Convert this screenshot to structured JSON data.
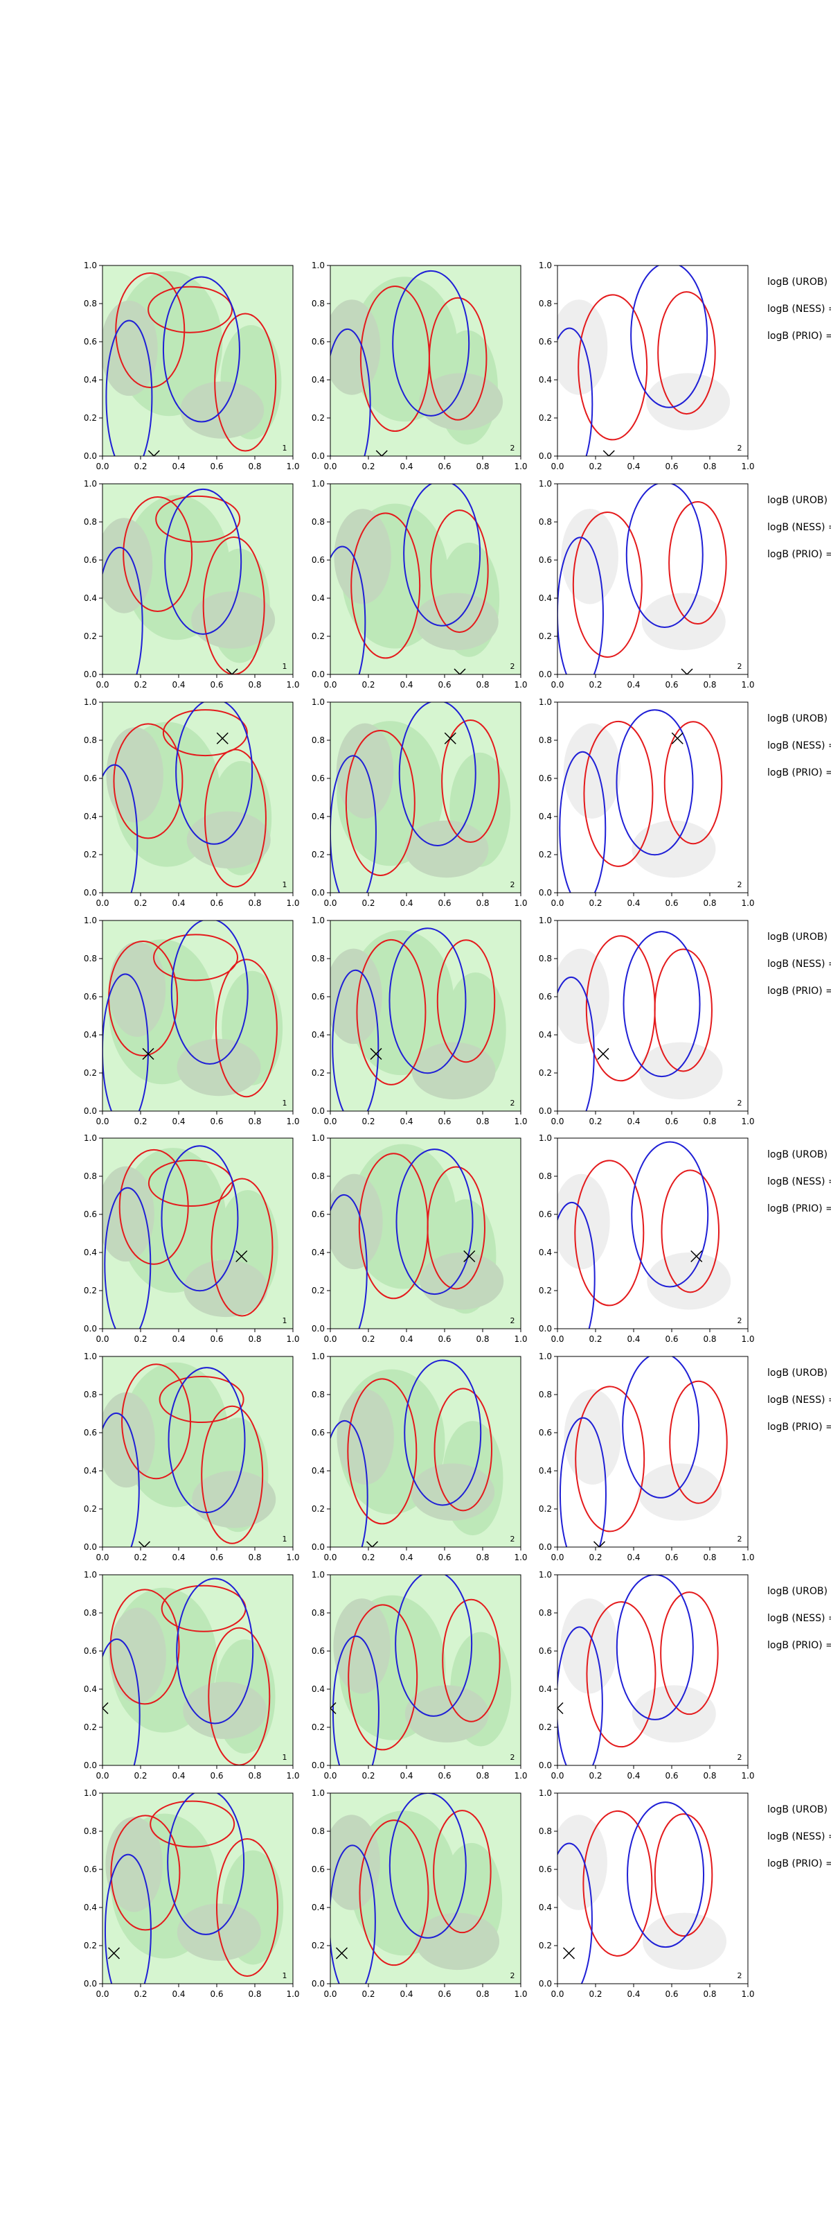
{
  "chart_data": {
    "type": "contour",
    "layout": "8 rows x 3 columns of square panels",
    "xlim": [
      0,
      1
    ],
    "ylim": [
      0,
      1
    ],
    "xticks": [
      "0.0",
      "0.2",
      "0.4",
      "0.6",
      "0.8",
      "1.0"
    ],
    "yticks": [
      "0.0",
      "0.2",
      "0.4",
      "0.6",
      "0.8",
      "1.0"
    ],
    "grid": false,
    "legend": "none",
    "colors": {
      "red_contour": "#e41a1c",
      "blue_contour": "#1f1fd6",
      "fill_light_green": "#d6f5d0",
      "fill_mid_green": "#bde8b8",
      "fill_grey_green": "#c2d8bd",
      "fill_light_grey": "#eeeeee",
      "marker": "#000000"
    },
    "panel_corner_labels": [
      "1",
      "2",
      "2"
    ],
    "row_side_labels": [
      "logB (UROB) =",
      "logB (NESS) =",
      "logB (PRIO) ="
    ],
    "rows": [
      {
        "marker": [
          0.27,
          0.0
        ]
      },
      {
        "marker": [
          0.68,
          0.0
        ]
      },
      {
        "marker": [
          0.63,
          0.81
        ]
      },
      {
        "marker": [
          0.24,
          0.3
        ]
      },
      {
        "marker": [
          0.73,
          0.38
        ]
      },
      {
        "marker": [
          0.22,
          0.0
        ]
      },
      {
        "marker": [
          0.0,
          0.3
        ]
      },
      {
        "marker": [
          0.06,
          0.16
        ]
      }
    ]
  }
}
